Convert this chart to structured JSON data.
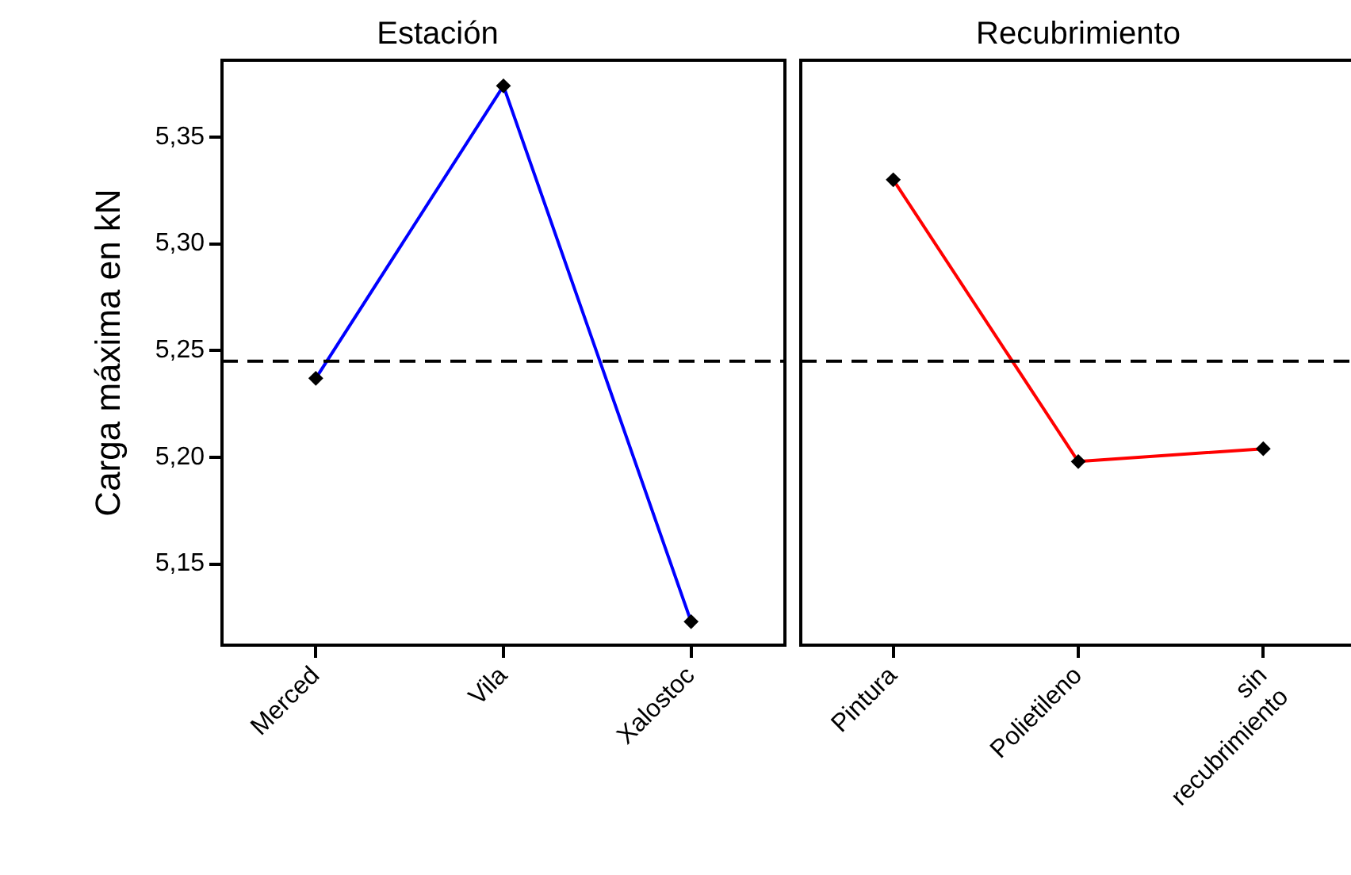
{
  "chart_data": [
    {
      "type": "line",
      "title": "Estación",
      "ylabel": "Carga máxima en kN",
      "categories": [
        "Merced",
        "Vila",
        "Xalostoc"
      ],
      "series": [
        {
          "color": "#0000ff",
          "values": [
            5.237,
            5.374,
            5.123
          ]
        }
      ],
      "ylim": [
        5.112,
        5.386
      ],
      "yticks": [
        {
          "value": 5.15,
          "label": "5,15"
        },
        {
          "value": 5.2,
          "label": "5,20"
        },
        {
          "value": 5.25,
          "label": "5,25"
        },
        {
          "value": 5.3,
          "label": "5,30"
        },
        {
          "value": 5.35,
          "label": "5,35"
        }
      ],
      "ref_lines": [
        {
          "axis": "y",
          "value": 5.245,
          "color": "#000000",
          "line_style": "dashed"
        }
      ],
      "marker": "diamond",
      "line_style": "solid",
      "grid": false,
      "legend": false
    },
    {
      "type": "line",
      "title": "Recubrimiento",
      "categories": [
        "Pintura",
        "Polietileno",
        "sin recubrimiento"
      ],
      "series": [
        {
          "color": "#ff0000",
          "values": [
            5.33,
            5.198,
            5.204
          ]
        }
      ],
      "ylim": [
        5.112,
        5.386
      ],
      "ref_lines": [
        {
          "axis": "y",
          "value": 5.245,
          "color": "#000000",
          "line_style": "dashed"
        }
      ],
      "marker": "diamond",
      "line_style": "solid",
      "grid": false,
      "legend": false,
      "tick_labels": "x"
    }
  ]
}
